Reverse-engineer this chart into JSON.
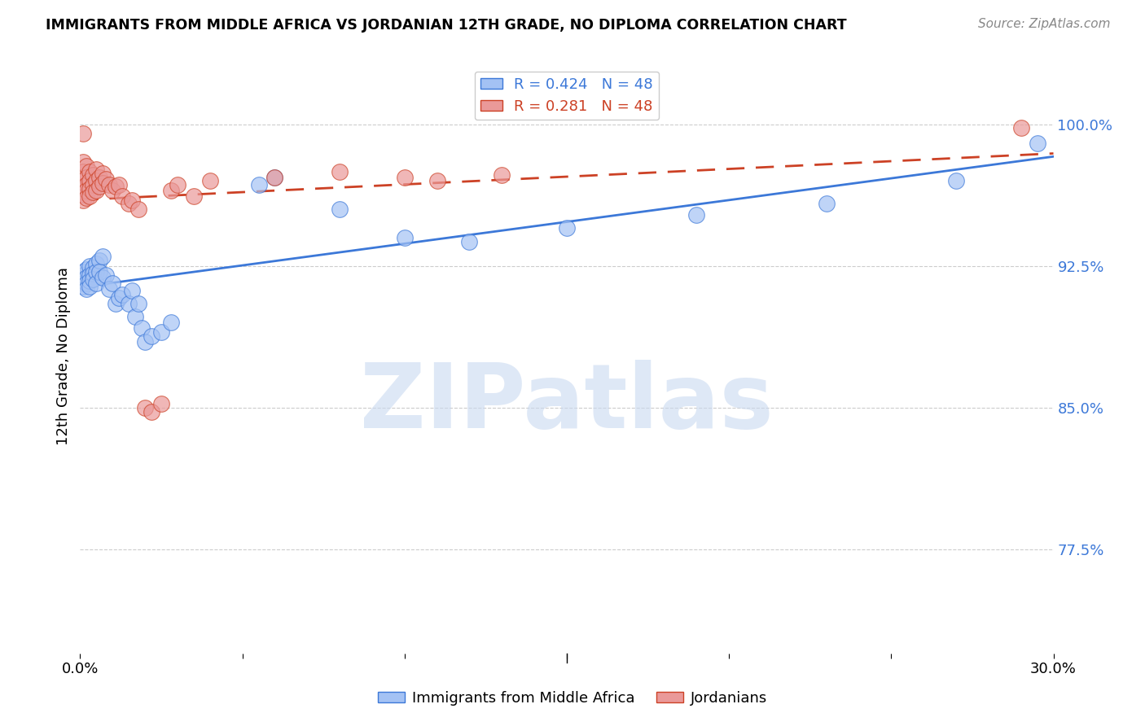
{
  "title": "IMMIGRANTS FROM MIDDLE AFRICA VS JORDANIAN 12TH GRADE, NO DIPLOMA CORRELATION CHART",
  "source": "Source: ZipAtlas.com",
  "ylabel": "12th Grade, No Diploma",
  "ytick_labels": [
    "100.0%",
    "92.5%",
    "85.0%",
    "77.5%"
  ],
  "ytick_values": [
    1.0,
    0.925,
    0.85,
    0.775
  ],
  "xlim": [
    0.0,
    0.3
  ],
  "ylim": [
    0.72,
    1.035
  ],
  "legend_blue_label": "R = 0.424   N = 48",
  "legend_pink_label": "R = 0.281   N = 48",
  "blue_color": "#a4c2f4",
  "pink_color": "#ea9999",
  "blue_line_color": "#3c78d8",
  "pink_line_color": "#cc4125",
  "watermark": "ZIPatlas",
  "blue_scatter": [
    [
      0.001,
      0.922
    ],
    [
      0.001,
      0.92
    ],
    [
      0.001,
      0.918
    ],
    [
      0.001,
      0.916
    ],
    [
      0.001,
      0.914
    ],
    [
      0.002,
      0.923
    ],
    [
      0.002,
      0.919
    ],
    [
      0.002,
      0.916
    ],
    [
      0.002,
      0.913
    ],
    [
      0.003,
      0.925
    ],
    [
      0.003,
      0.92
    ],
    [
      0.003,
      0.917
    ],
    [
      0.003,
      0.914
    ],
    [
      0.004,
      0.924
    ],
    [
      0.004,
      0.921
    ],
    [
      0.004,
      0.918
    ],
    [
      0.005,
      0.926
    ],
    [
      0.005,
      0.922
    ],
    [
      0.005,
      0.916
    ],
    [
      0.006,
      0.928
    ],
    [
      0.006,
      0.922
    ],
    [
      0.007,
      0.93
    ],
    [
      0.007,
      0.919
    ],
    [
      0.008,
      0.92
    ],
    [
      0.009,
      0.913
    ],
    [
      0.01,
      0.916
    ],
    [
      0.011,
      0.905
    ],
    [
      0.012,
      0.908
    ],
    [
      0.013,
      0.91
    ],
    [
      0.015,
      0.905
    ],
    [
      0.016,
      0.912
    ],
    [
      0.017,
      0.898
    ],
    [
      0.018,
      0.905
    ],
    [
      0.019,
      0.892
    ],
    [
      0.02,
      0.885
    ],
    [
      0.022,
      0.888
    ],
    [
      0.025,
      0.89
    ],
    [
      0.028,
      0.895
    ],
    [
      0.055,
      0.968
    ],
    [
      0.06,
      0.972
    ],
    [
      0.08,
      0.955
    ],
    [
      0.1,
      0.94
    ],
    [
      0.12,
      0.938
    ],
    [
      0.15,
      0.945
    ],
    [
      0.19,
      0.952
    ],
    [
      0.23,
      0.958
    ],
    [
      0.27,
      0.97
    ],
    [
      0.295,
      0.99
    ]
  ],
  "pink_scatter": [
    [
      0.001,
      0.995
    ],
    [
      0.001,
      0.98
    ],
    [
      0.001,
      0.975
    ],
    [
      0.001,
      0.97
    ],
    [
      0.001,
      0.967
    ],
    [
      0.001,
      0.963
    ],
    [
      0.001,
      0.96
    ],
    [
      0.002,
      0.978
    ],
    [
      0.002,
      0.972
    ],
    [
      0.002,
      0.968
    ],
    [
      0.002,
      0.965
    ],
    [
      0.002,
      0.961
    ],
    [
      0.003,
      0.975
    ],
    [
      0.003,
      0.97
    ],
    [
      0.003,
      0.966
    ],
    [
      0.003,
      0.962
    ],
    [
      0.004,
      0.973
    ],
    [
      0.004,
      0.968
    ],
    [
      0.004,
      0.964
    ],
    [
      0.005,
      0.976
    ],
    [
      0.005,
      0.97
    ],
    [
      0.005,
      0.965
    ],
    [
      0.006,
      0.972
    ],
    [
      0.006,
      0.967
    ],
    [
      0.007,
      0.974
    ],
    [
      0.007,
      0.969
    ],
    [
      0.008,
      0.971
    ],
    [
      0.009,
      0.968
    ],
    [
      0.01,
      0.965
    ],
    [
      0.011,
      0.967
    ],
    [
      0.012,
      0.968
    ],
    [
      0.013,
      0.962
    ],
    [
      0.015,
      0.958
    ],
    [
      0.016,
      0.96
    ],
    [
      0.018,
      0.955
    ],
    [
      0.02,
      0.85
    ],
    [
      0.022,
      0.848
    ],
    [
      0.025,
      0.852
    ],
    [
      0.028,
      0.965
    ],
    [
      0.03,
      0.968
    ],
    [
      0.035,
      0.962
    ],
    [
      0.04,
      0.97
    ],
    [
      0.06,
      0.972
    ],
    [
      0.08,
      0.975
    ],
    [
      0.1,
      0.972
    ],
    [
      0.11,
      0.97
    ],
    [
      0.13,
      0.973
    ],
    [
      0.29,
      0.998
    ]
  ]
}
